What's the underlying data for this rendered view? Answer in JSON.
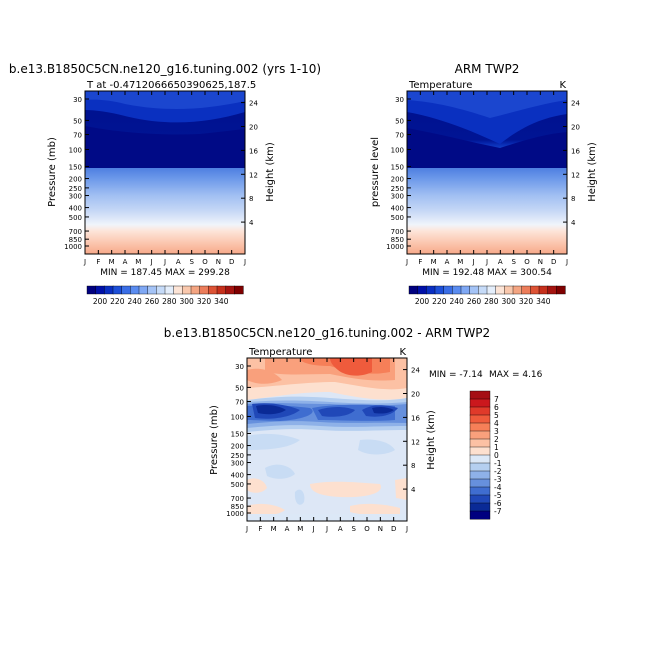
{
  "chart_data": [
    {
      "type": "heatmap",
      "title": "b.e13.B1850C5CN.ne120_g16.tuning.002 (yrs 1-10)",
      "subtitle_left": "T at -0.4712066650390625,187.5",
      "ylabel": "Pressure (mb)",
      "ylabel_right": "Height (km)",
      "x_ticks": [
        "J",
        "F",
        "M",
        "A",
        "M",
        "J",
        "J",
        "A",
        "S",
        "O",
        "N",
        "D",
        "J"
      ],
      "y_ticks": [
        "30",
        "50",
        "70",
        "100",
        "150",
        "200",
        "250",
        "300",
        "400",
        "500",
        "700",
        "850",
        "1000"
      ],
      "right_ticks": [
        "24",
        "20",
        "16",
        "12",
        "8",
        "4"
      ],
      "stats": "MIN = 187.45 MAX = 299.28",
      "min": 187.45,
      "max": 299.28
    },
    {
      "type": "heatmap",
      "title": "ARM TWP2",
      "subtitle_left": "Temperature",
      "subtitle_right": "K",
      "ylabel": "pressure level",
      "ylabel_right": "Height (km)",
      "x_ticks": [
        "J",
        "F",
        "M",
        "A",
        "M",
        "J",
        "J",
        "A",
        "S",
        "O",
        "N",
        "D",
        "J"
      ],
      "y_ticks": [
        "30",
        "50",
        "70",
        "100",
        "150",
        "200",
        "250",
        "300",
        "400",
        "500",
        "700",
        "850",
        "1000"
      ],
      "right_ticks": [
        "24",
        "20",
        "16",
        "12",
        "8",
        "4"
      ],
      "stats": "MIN = 192.48 MAX = 300.54",
      "min": 192.48,
      "max": 300.54
    },
    {
      "type": "heatmap",
      "title": "b.e13.B1850C5CN.ne120_g16.tuning.002 - ARM TWP2",
      "subtitle_left": "Temperature",
      "subtitle_right": "K",
      "ylabel": "Pressure (mb)",
      "ylabel_right": "Height (km)",
      "x_ticks": [
        "J",
        "F",
        "M",
        "A",
        "M",
        "J",
        "J",
        "A",
        "S",
        "O",
        "N",
        "D",
        "J"
      ],
      "y_ticks": [
        "30",
        "50",
        "70",
        "100",
        "150",
        "200",
        "250",
        "300",
        "400",
        "500",
        "700",
        "850",
        "1000"
      ],
      "right_ticks": [
        "24",
        "20",
        "16",
        "12",
        "8",
        "4"
      ],
      "stats_min": "MIN = -7.14",
      "stats_max": "MAX =   4.16",
      "min": -7.14,
      "max": 4.16
    }
  ],
  "temp_colorbar": {
    "labels": [
      "200",
      "220",
      "240",
      "260",
      "280",
      "300",
      "320",
      "340"
    ],
    "colors": [
      "#00007f",
      "#0010a8",
      "#0a2fc2",
      "#1d4fd8",
      "#3a6ee6",
      "#5a8cf0",
      "#7fa8f4",
      "#a4c3f6",
      "#c6dbf8",
      "#e4eefb",
      "#fce4d6",
      "#f9c8ad",
      "#f4a582",
      "#ec7d5b",
      "#dd5335",
      "#c6301c",
      "#a51410",
      "#7f0000"
    ]
  },
  "diff_colorbar": {
    "labels": [
      "7",
      "6",
      "5",
      "4",
      "3",
      "2",
      "1",
      "0",
      "-1",
      "-2",
      "-3",
      "-4",
      "-5",
      "-6",
      "-7"
    ],
    "colors": [
      "#a50f15",
      "#cb181d",
      "#e03a2a",
      "#ef5b3c",
      "#f67f58",
      "#f9a07c",
      "#fcc1a4",
      "#fde0cf",
      "#dce8f7",
      "#b5cff0",
      "#8eb1e8",
      "#6690dd",
      "#3f6dd0",
      "#2048b8",
      "#0a2a96",
      "#00007f"
    ]
  }
}
